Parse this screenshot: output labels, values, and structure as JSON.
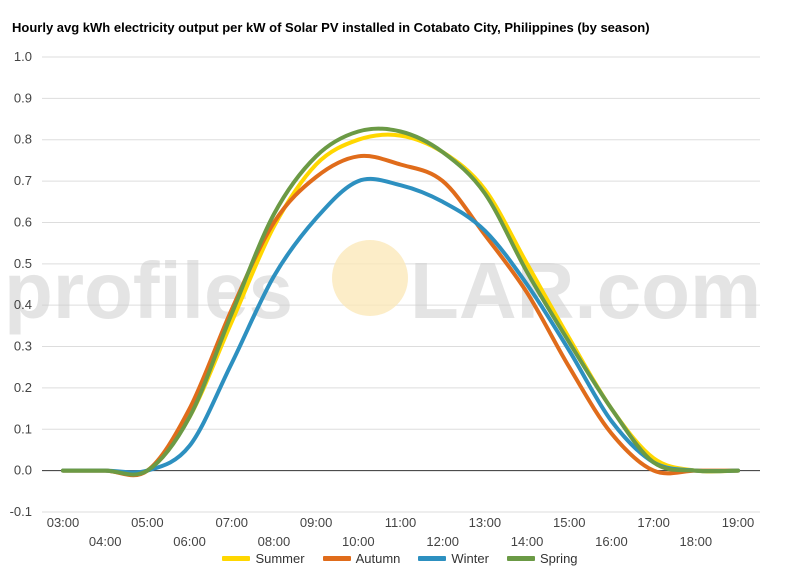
{
  "chart_data": {
    "type": "line",
    "title": "Hourly avg kWh electricity output per kW of Solar PV installed in Cotabato City, Philippines (by season)",
    "xlabel": "",
    "ylabel": "",
    "ylim": [
      -0.1,
      1.0
    ],
    "yticks": [
      "-0.1",
      "0.0",
      "0.1",
      "0.2",
      "0.3",
      "0.4",
      "0.5",
      "0.6",
      "0.7",
      "0.8",
      "0.9",
      "1.0"
    ],
    "x": [
      "03:00",
      "04:00",
      "05:00",
      "06:00",
      "07:00",
      "08:00",
      "09:00",
      "10:00",
      "11:00",
      "12:00",
      "13:00",
      "14:00",
      "15:00",
      "16:00",
      "17:00",
      "18:00",
      "19:00"
    ],
    "grid": true,
    "legend_position": "bottom",
    "watermark": {
      "left": "profiles",
      "right": "LAR.com"
    },
    "series": [
      {
        "name": "Summer",
        "color": "#ffd700",
        "values": [
          0.0,
          0.0,
          0.0,
          0.13,
          0.36,
          0.59,
          0.74,
          0.8,
          0.81,
          0.77,
          0.68,
          0.5,
          0.32,
          0.15,
          0.03,
          0.0,
          0.0
        ]
      },
      {
        "name": "Autumn",
        "color": "#e06c1b",
        "values": [
          0.0,
          0.0,
          0.0,
          0.15,
          0.39,
          0.6,
          0.71,
          0.76,
          0.74,
          0.7,
          0.57,
          0.43,
          0.25,
          0.09,
          0.0,
          0.0,
          0.0
        ]
      },
      {
        "name": "Winter",
        "color": "#2d90c0",
        "values": [
          0.0,
          0.0,
          0.0,
          0.06,
          0.26,
          0.47,
          0.61,
          0.7,
          0.69,
          0.65,
          0.58,
          0.45,
          0.29,
          0.12,
          0.02,
          0.0,
          0.0
        ]
      },
      {
        "name": "Spring",
        "color": "#6b9a45",
        "values": [
          0.0,
          0.0,
          0.0,
          0.13,
          0.38,
          0.62,
          0.76,
          0.82,
          0.82,
          0.77,
          0.67,
          0.48,
          0.31,
          0.15,
          0.02,
          0.0,
          0.0
        ]
      }
    ]
  }
}
